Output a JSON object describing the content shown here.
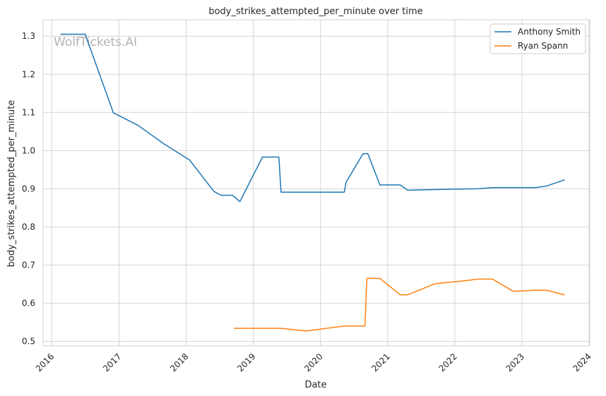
{
  "chart_data": {
    "type": "line",
    "title": "body_strikes_attempted_per_minute over time",
    "xlabel": "Date",
    "ylabel": "body_strikes_attempted_per_minute",
    "watermark": "WolfTickets.AI",
    "xlim": [
      "2015-11-15",
      "2024-01-05"
    ],
    "ylim": [
      0.488,
      1.343
    ],
    "x_ticks": [
      "2016-01-01",
      "2017-01-01",
      "2018-01-01",
      "2019-01-01",
      "2020-01-01",
      "2021-01-01",
      "2022-01-01",
      "2023-01-01",
      "2024-01-01"
    ],
    "x_tick_labels": [
      "2016",
      "2017",
      "2018",
      "2019",
      "2020",
      "2021",
      "2022",
      "2023",
      "2024"
    ],
    "y_ticks": [
      0.5,
      0.6,
      0.7,
      0.8,
      0.9,
      1.0,
      1.1,
      1.2,
      1.3
    ],
    "y_tick_labels": [
      "0.5",
      "0.6",
      "0.7",
      "0.8",
      "0.9",
      "1.0",
      "1.1",
      "1.2",
      "1.3"
    ],
    "grid": true,
    "legend_position": "top-right",
    "series": [
      {
        "name": "Anthony Smith",
        "color": "#1f77b4",
        "points": [
          [
            "2016-02-20",
            1.305
          ],
          [
            "2016-07-01",
            1.305
          ],
          [
            "2016-12-01",
            1.099
          ],
          [
            "2017-04-15",
            1.066
          ],
          [
            "2017-09-01",
            1.018
          ],
          [
            "2018-01-20",
            0.975
          ],
          [
            "2018-06-01",
            0.893
          ],
          [
            "2018-07-10",
            0.883
          ],
          [
            "2018-09-10",
            0.883
          ],
          [
            "2018-10-20",
            0.866
          ],
          [
            "2019-02-20",
            0.983
          ],
          [
            "2019-05-20",
            0.983
          ],
          [
            "2019-06-01",
            0.891
          ],
          [
            "2020-05-10",
            0.891
          ],
          [
            "2020-05-20",
            0.917
          ],
          [
            "2020-08-20",
            0.992
          ],
          [
            "2020-09-15",
            0.992
          ],
          [
            "2020-11-20",
            0.91
          ],
          [
            "2021-03-10",
            0.91
          ],
          [
            "2021-04-20",
            0.896
          ],
          [
            "2021-09-15",
            0.898
          ],
          [
            "2022-01-20",
            0.899
          ],
          [
            "2022-05-10",
            0.9
          ],
          [
            "2022-07-25",
            0.903
          ],
          [
            "2022-11-15",
            0.903
          ],
          [
            "2023-03-15",
            0.903
          ],
          [
            "2023-05-15",
            0.907
          ],
          [
            "2023-08-20",
            0.923
          ]
        ]
      },
      {
        "name": "Ryan Spann",
        "color": "#ff7f0e",
        "points": [
          [
            "2018-09-20",
            0.534
          ],
          [
            "2019-06-01",
            0.534
          ],
          [
            "2019-10-15",
            0.527
          ],
          [
            "2020-05-10",
            0.54
          ],
          [
            "2020-08-30",
            0.54
          ],
          [
            "2020-09-10",
            0.665
          ],
          [
            "2020-11-20",
            0.665
          ],
          [
            "2021-03-10",
            0.622
          ],
          [
            "2021-04-20",
            0.622
          ],
          [
            "2021-09-15",
            0.651
          ],
          [
            "2022-01-20",
            0.657
          ],
          [
            "2022-05-10",
            0.663
          ],
          [
            "2022-07-25",
            0.663
          ],
          [
            "2022-11-15",
            0.631
          ],
          [
            "2023-03-15",
            0.634
          ],
          [
            "2023-05-15",
            0.634
          ],
          [
            "2023-08-20",
            0.622
          ]
        ]
      }
    ]
  }
}
